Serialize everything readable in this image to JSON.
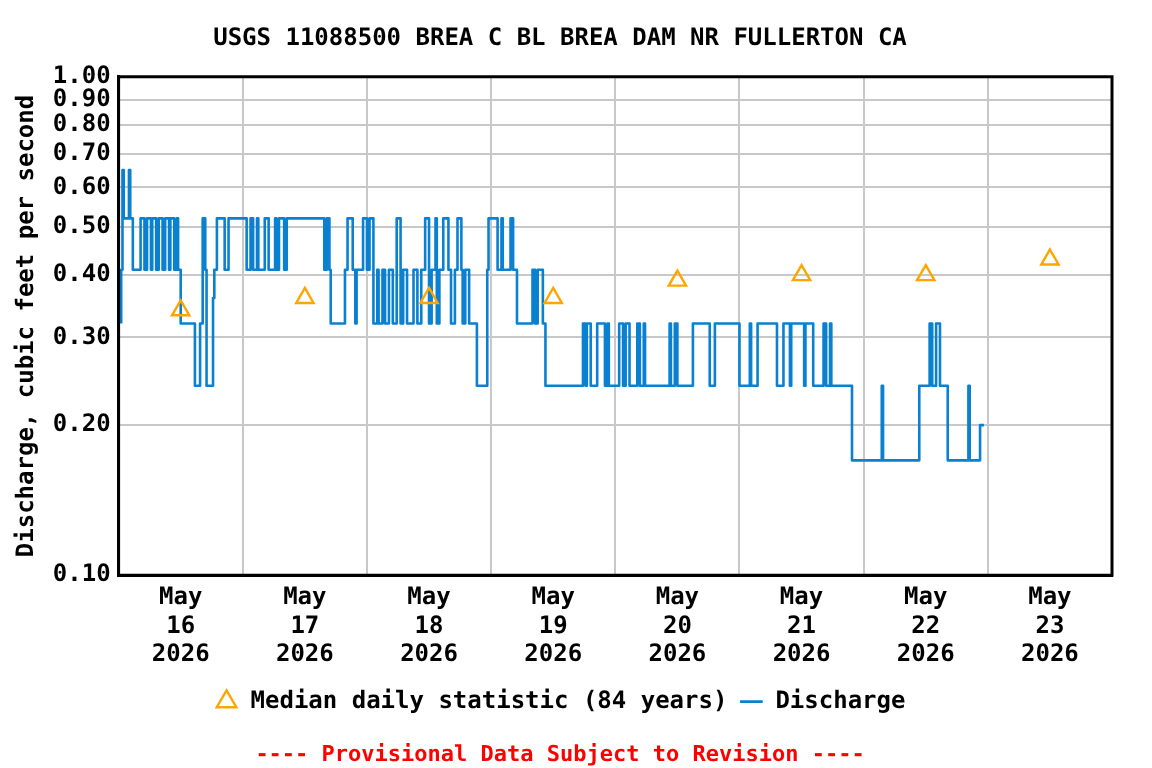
{
  "chart_data": {
    "type": "step",
    "title": "USGS 11088500 BREA C BL BREA DAM NR FULLERTON CA",
    "ylabel": "Discharge, cubic feet per second",
    "annotations": [
      "---- Provisional Data Subject to Revision ----"
    ],
    "log": "y",
    "grid": true,
    "legend": "bottom",
    "marker": "none",
    "xlim": [
      "2026-05-16T00:00",
      "2026-05-24T00:00"
    ],
    "xticks": [
      {
        "value": "2026-05-16T12:00",
        "label": "May\n16\n2026"
      },
      {
        "value": "2026-05-17T00:00",
        "label": null
      },
      {
        "value": "2026-05-17T12:00",
        "label": "May\n17\n2026"
      },
      {
        "value": "2026-05-18T00:00",
        "label": null
      },
      {
        "value": "2026-05-18T12:00",
        "label": "May\n18\n2026"
      },
      {
        "value": "2026-05-19T00:00",
        "label": null
      },
      {
        "value": "2026-05-19T12:00",
        "label": "May\n19\n2026"
      },
      {
        "value": "2026-05-20T00:00",
        "label": null
      },
      {
        "value": "2026-05-20T12:00",
        "label": "May\n20\n2026"
      },
      {
        "value": "2026-05-21T00:00",
        "label": null
      },
      {
        "value": "2026-05-21T12:00",
        "label": "May\n21\n2026"
      },
      {
        "value": "2026-05-22T00:00",
        "label": null
      },
      {
        "value": "2026-05-22T12:00",
        "label": "May\n22\n2026"
      },
      {
        "value": "2026-05-23T00:00",
        "label": null
      },
      {
        "value": "2026-05-23T12:00",
        "label": "May\n23\n2026"
      }
    ],
    "ylim": [
      0.1,
      1.0
    ],
    "yticks": [
      {
        "value": 0.1,
        "label": "0.10"
      },
      {
        "value": 0.2,
        "label": "0.20"
      },
      {
        "value": 0.3,
        "label": "0.30"
      },
      {
        "value": 0.4,
        "label": "0.40"
      },
      {
        "value": 0.5,
        "label": "0.50"
      },
      {
        "value": 0.6,
        "label": "0.60"
      },
      {
        "value": 0.7,
        "label": "0.70"
      },
      {
        "value": 0.8,
        "label": "0.80"
      },
      {
        "value": 0.9,
        "label": "0.90"
      },
      {
        "value": 1.0,
        "label": "1.00"
      }
    ],
    "series": [
      {
        "name": "Median daily statistic (84 years)",
        "type": "scatter",
        "marker": "triangle",
        "color": "#ffa500",
        "x": [
          "2026-05-16T12:00",
          "2026-05-17T12:00",
          "2026-05-18T12:00",
          "2026-05-19T12:00",
          "2026-05-20T12:00",
          "2026-05-21T12:00",
          "2026-05-22T12:00",
          "2026-05-23T12:00"
        ],
        "values": [
          0.34,
          0.36,
          0.36,
          0.36,
          0.39,
          0.4,
          0.4,
          0.43
        ]
      },
      {
        "name": "Discharge",
        "color": "#0a80d0",
        "x": [
          "2026-05-16T00:30",
          "2026-05-16T00:45",
          "2026-05-16T01:00",
          "2026-05-16T02:00",
          "2026-05-16T02:15",
          "2026-05-16T02:45",
          "2026-05-16T04:15",
          "2026-05-16T05:00",
          "2026-05-16T05:30",
          "2026-05-16T06:15",
          "2026-05-16T06:30",
          "2026-05-16T07:15",
          "2026-05-16T07:45",
          "2026-05-16T08:30",
          "2026-05-16T09:00",
          "2026-05-16T09:45",
          "2026-05-16T10:00",
          "2026-05-16T10:45",
          "2026-05-16T11:15",
          "2026-05-16T11:30",
          "2026-05-16T12:00",
          "2026-05-16T14:45",
          "2026-05-16T15:45",
          "2026-05-16T16:15",
          "2026-05-16T16:45",
          "2026-05-16T17:00",
          "2026-05-16T18:15",
          "2026-05-16T18:30",
          "2026-05-16T19:00",
          "2026-05-16T20:30",
          "2026-05-16T21:15",
          "2026-05-17T00:45",
          "2026-05-17T01:30",
          "2026-05-17T02:00",
          "2026-05-17T02:45",
          "2026-05-17T03:00",
          "2026-05-17T04:15",
          "2026-05-17T05:00",
          "2026-05-17T06:15",
          "2026-05-17T06:30",
          "2026-05-17T07:00",
          "2026-05-17T08:00",
          "2026-05-17T08:30",
          "2026-05-17T15:45",
          "2026-05-17T16:15",
          "2026-05-17T16:45",
          "2026-05-17T17:00",
          "2026-05-17T19:45",
          "2026-05-17T20:15",
          "2026-05-17T21:15",
          "2026-05-17T21:45",
          "2026-05-17T22:00",
          "2026-05-17T23:15",
          "2026-05-18T00:00",
          "2026-05-18T00:30",
          "2026-05-18T01:15",
          "2026-05-18T02:00",
          "2026-05-18T02:15",
          "2026-05-18T03:00",
          "2026-05-18T03:30",
          "2026-05-18T04:15",
          "2026-05-18T05:00",
          "2026-05-18T05:45",
          "2026-05-18T06:30",
          "2026-05-18T07:00",
          "2026-05-18T07:45",
          "2026-05-18T09:00",
          "2026-05-18T09:45",
          "2026-05-18T10:30",
          "2026-05-18T11:15",
          "2026-05-18T12:00",
          "2026-05-18T12:30",
          "2026-05-18T13:15",
          "2026-05-18T13:30",
          "2026-05-18T14:00",
          "2026-05-18T14:45",
          "2026-05-18T15:45",
          "2026-05-18T16:15",
          "2026-05-18T17:00",
          "2026-05-18T17:30",
          "2026-05-18T18:15",
          "2026-05-18T18:30",
          "2026-05-18T19:00",
          "2026-05-18T19:45",
          "2026-05-18T21:15",
          "2026-05-18T23:15",
          "2026-05-18T23:30",
          "2026-05-19T01:15",
          "2026-05-19T02:00",
          "2026-05-19T02:15",
          "2026-05-19T03:45",
          "2026-05-19T04:15",
          "2026-05-19T05:00",
          "2026-05-19T08:00",
          "2026-05-19T08:30",
          "2026-05-19T09:00",
          "2026-05-19T10:00",
          "2026-05-19T10:30",
          "2026-05-19T17:45",
          "2026-05-19T18:15",
          "2026-05-19T18:30",
          "2026-05-19T19:15",
          "2026-05-19T20:30",
          "2026-05-19T22:00",
          "2026-05-19T22:30",
          "2026-05-19T22:45",
          "2026-05-20T00:45",
          "2026-05-20T01:30",
          "2026-05-20T02:00",
          "2026-05-20T02:45",
          "2026-05-20T04:15",
          "2026-05-20T04:45",
          "2026-05-20T05:30",
          "2026-05-20T05:45",
          "2026-05-20T10:30",
          "2026-05-20T10:45",
          "2026-05-20T11:30",
          "2026-05-20T12:00",
          "2026-05-20T15:00",
          "2026-05-20T18:15",
          "2026-05-20T19:15",
          "2026-05-21T00:00",
          "2026-05-21T02:00",
          "2026-05-21T02:15",
          "2026-05-21T03:30",
          "2026-05-21T07:15",
          "2026-05-21T08:30",
          "2026-05-21T09:45",
          "2026-05-21T10:00",
          "2026-05-21T12:30",
          "2026-05-21T12:45",
          "2026-05-21T14:15",
          "2026-05-21T16:15",
          "2026-05-21T16:45",
          "2026-05-21T17:30",
          "2026-05-21T17:45",
          "2026-05-21T21:45",
          "2026-05-22T03:30",
          "2026-05-22T03:45",
          "2026-05-22T10:45",
          "2026-05-22T12:45",
          "2026-05-22T13:15",
          "2026-05-22T14:00",
          "2026-05-22T14:45",
          "2026-05-22T16:15",
          "2026-05-22T20:15",
          "2026-05-22T20:30",
          "2026-05-22T22:30",
          "2026-05-22T22:45",
          "2026-05-22T23:15"
        ],
        "values": [
          0.32,
          0.41,
          0.65,
          0.52,
          0.65,
          0.52,
          0.41,
          0.52,
          0.41,
          0.52,
          0.41,
          0.52,
          0.41,
          0.52,
          0.41,
          0.52,
          0.41,
          0.52,
          0.41,
          0.52,
          0.41,
          0.32,
          0.24,
          0.32,
          0.52,
          0.41,
          0.24,
          0.36,
          0.41,
          0.52,
          0.41,
          0.52,
          0.41,
          0.52,
          0.41,
          0.52,
          0.41,
          0.52,
          0.41,
          0.52,
          0.41,
          0.52,
          0.41,
          0.52,
          0.41,
          0.52,
          0.41,
          0.32,
          0.41,
          0.52,
          0.41,
          0.32,
          0.41,
          0.52,
          0.41,
          0.52,
          0.32,
          0.41,
          0.32,
          0.41,
          0.32,
          0.41,
          0.32,
          0.52,
          0.32,
          0.41,
          0.32,
          0.41,
          0.32,
          0.41,
          0.52,
          0.32,
          0.41,
          0.52,
          0.32,
          0.41,
          0.52,
          0.41,
          0.32,
          0.41,
          0.52,
          0.41,
          0.32,
          0.41,
          0.32,
          0.24,
          0.41,
          0.52,
          0.41,
          0.52,
          0.41,
          0.52,
          0.41,
          0.32,
          0.41,
          0.32,
          0.41,
          0.32,
          0.24,
          0.32,
          0.24,
          0.32,
          0.24,
          0.32,
          0.24,
          0.32,
          0.24,
          0.32,
          0.24,
          0.32,
          0.24,
          0.32,
          0.24,
          0.32,
          0.24,
          0.32,
          0.24,
          0.32,
          0.24,
          0.32,
          0.24,
          0.32,
          0.24,
          0.32,
          0.24,
          0.32,
          0.24,
          0.32,
          0.24,
          0.32,
          0.24,
          0.32,
          0.24,
          0.32,
          0.24,
          0.32,
          0.24,
          0.17,
          0.24,
          0.17,
          0.24,
          0.32,
          0.24,
          0.32,
          0.24,
          0.17,
          0.24,
          0.17,
          0.2,
          0.2
        ]
      }
    ]
  }
}
